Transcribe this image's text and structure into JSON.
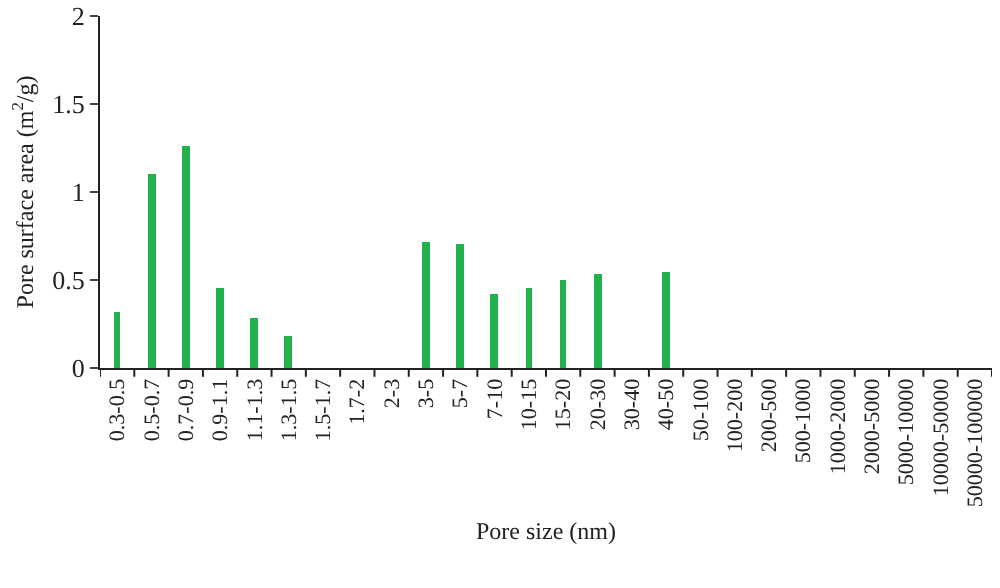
{
  "chart_data": {
    "type": "bar",
    "xlabel": "Pore size (nm)",
    "ylabel": "Pore surface area (m$^{2}$/g)",
    "categories": [
      "0.3-0.5",
      "0.5-0.7",
      "0.7-0.9",
      "0.9-1.1",
      "1.1-1.3",
      "1.3-1.5",
      "1.5-1.7",
      "1.7-2",
      "2-3",
      "3-5",
      "5-7",
      "7-10",
      "10-15",
      "15-20",
      "20-30",
      "30-40",
      "40-50",
      "50-100",
      "100-200",
      "200-500",
      "500-1000",
      "1000-2000",
      "2000-5000",
      "5000-10000",
      "10000-50000",
      "50000-100000"
    ],
    "values": [
      0.32,
      1.1,
      1.26,
      0.45,
      0.28,
      0.18,
      0,
      0,
      0,
      0.72,
      0.7,
      0.42,
      0.46,
      0.5,
      0.53,
      0,
      0.55,
      0,
      0,
      0,
      0,
      0,
      0,
      0,
      0,
      0
    ],
    "color": "#22b14c",
    "ylim": [
      0,
      2
    ],
    "yticks": [
      0,
      0.5,
      1,
      1.5,
      2
    ],
    "grid": false,
    "legend": false
  }
}
